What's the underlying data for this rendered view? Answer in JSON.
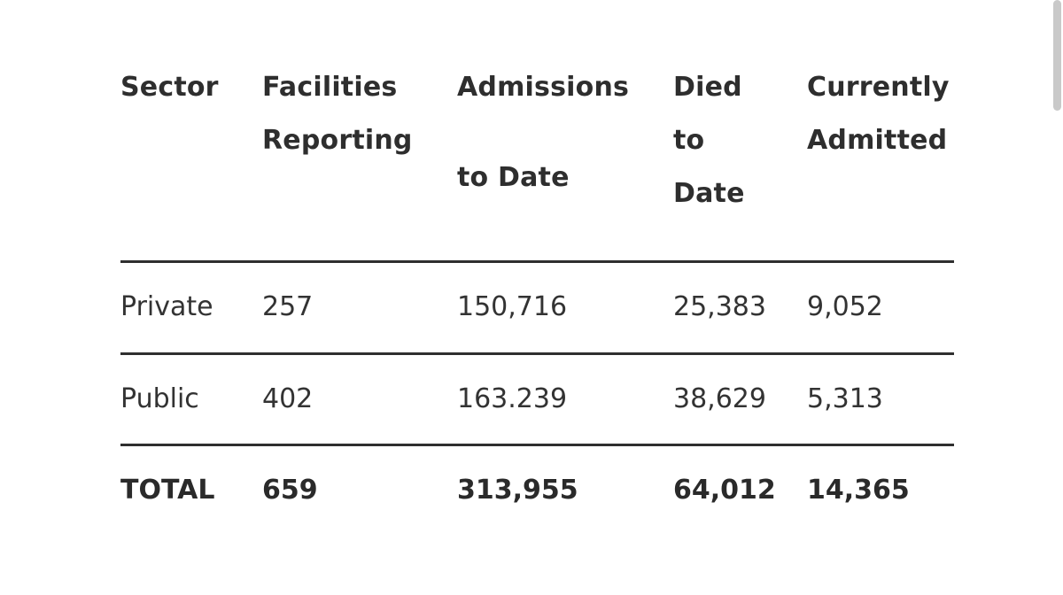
{
  "table": {
    "headers": {
      "sector": "Sector",
      "facilities_l1": "Facilities",
      "facilities_l2": "Reporting",
      "admissions_l1": "Admissions",
      "admissions_l2": "to Date",
      "died_l1": "Died",
      "died_l2": "to",
      "died_l3": "Date",
      "current_l1": "Currently",
      "current_l2": "Admitted"
    },
    "rows": [
      {
        "sector": "Private",
        "facilities": "257",
        "admissions": "150,716",
        "died": "25,383",
        "current": "9,052"
      },
      {
        "sector": "Public",
        "facilities": "402",
        "admissions": "163.239",
        "died": "38,629",
        "current": "5,313"
      }
    ],
    "total": {
      "sector": "TOTAL",
      "facilities": "659",
      "admissions": "313,955",
      "died": "64,012",
      "current": "14,365"
    }
  }
}
